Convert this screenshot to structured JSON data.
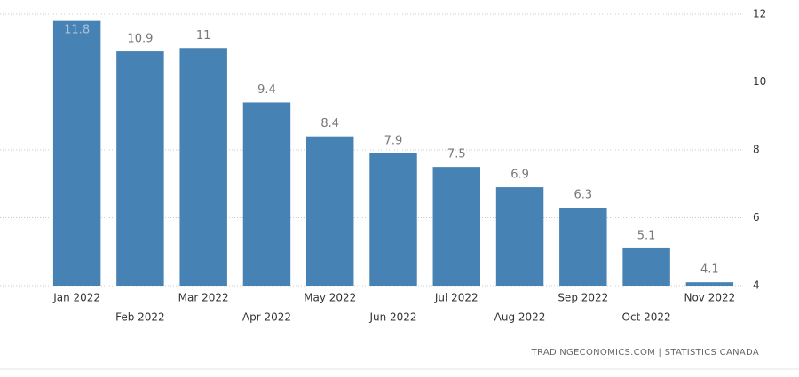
{
  "chart_data": {
    "type": "bar",
    "categories": [
      "Jan 2022",
      "Feb 2022",
      "Mar 2022",
      "Apr 2022",
      "May 2022",
      "Jun 2022",
      "Jul 2022",
      "Aug 2022",
      "Sep 2022",
      "Oct 2022",
      "Nov 2022"
    ],
    "values": [
      11.8,
      10.9,
      11,
      9.4,
      8.4,
      7.9,
      7.5,
      6.9,
      6.3,
      5.1,
      4.1
    ],
    "color": "#4682b4",
    "ylim": [
      4,
      12
    ],
    "yticks": [
      4,
      6,
      8,
      10,
      12
    ],
    "grid": true,
    "source": "TRADINGECONOMICS.COM  |  STATISTICS CANADA"
  }
}
